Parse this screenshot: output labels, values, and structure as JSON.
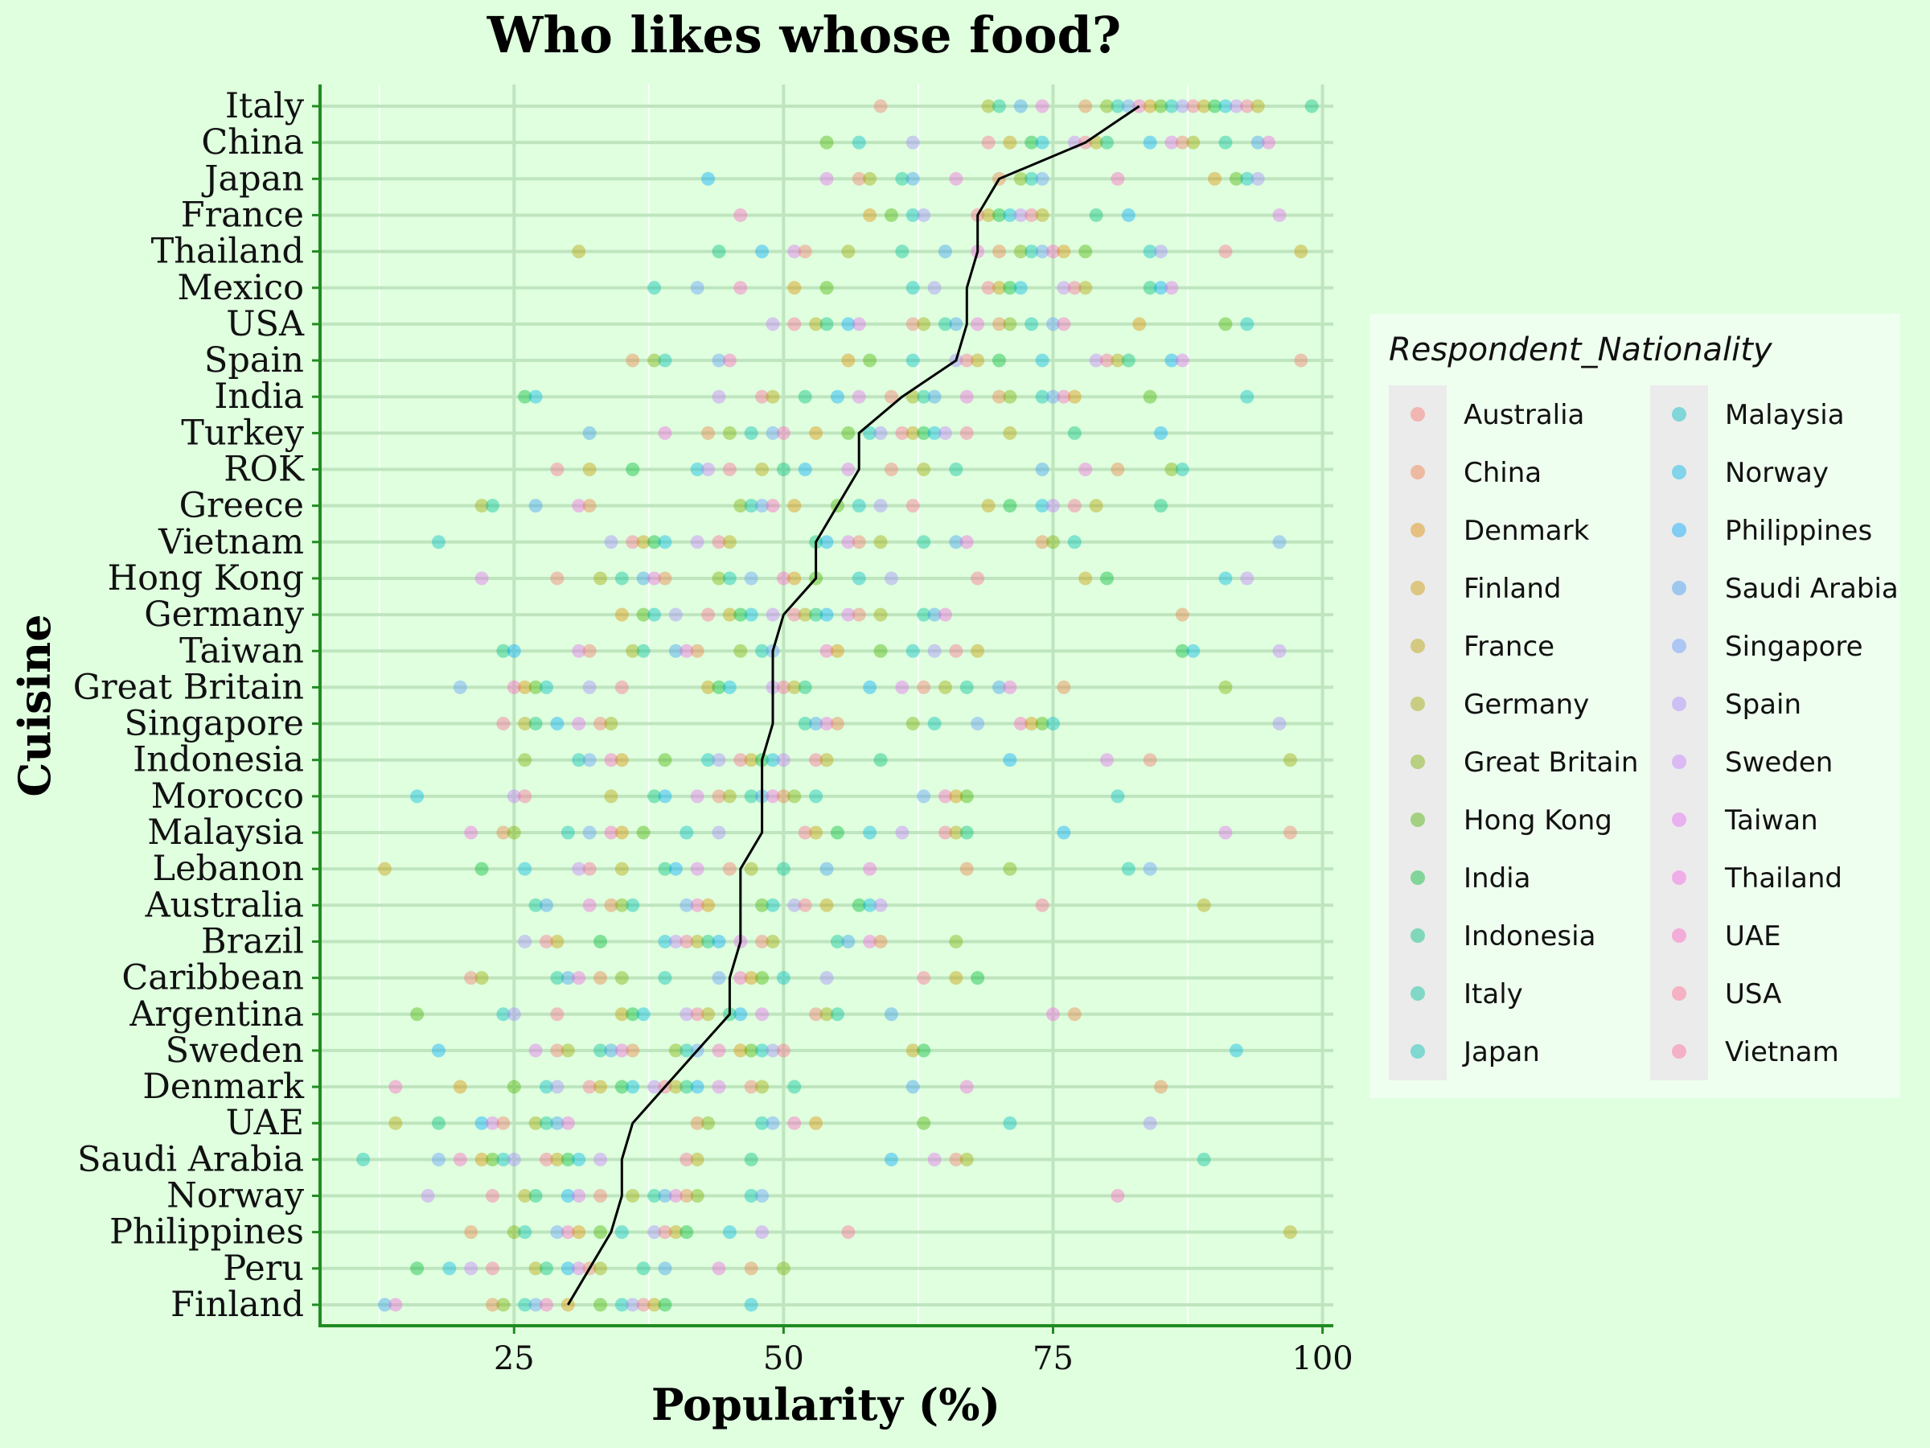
{
  "chart_data": {
    "type": "scatter",
    "title": "Who likes whose food?",
    "xlabel": "Popularity (%)",
    "ylabel": "Cuisine",
    "xlim": [
      7,
      101
    ],
    "xticks": [
      25,
      50,
      75,
      100
    ],
    "grid": true,
    "legend": {
      "title": "Respondent_Nationality",
      "placement": "right",
      "entries": [
        {
          "name": "Australia",
          "color": "#F8766D"
        },
        {
          "name": "China",
          "color": "#EF7F47"
        },
        {
          "name": "Denmark",
          "color": "#DE8C00"
        },
        {
          "name": "Finland",
          "color": "#C99800"
        },
        {
          "name": "France",
          "color": "#B79F00"
        },
        {
          "name": "Germany",
          "color": "#9FA800"
        },
        {
          "name": "Great Britain",
          "color": "#7CAE00"
        },
        {
          "name": "Hong Kong",
          "color": "#4BB200"
        },
        {
          "name": "India",
          "color": "#00BA38"
        },
        {
          "name": "Indonesia",
          "color": "#00BF7D"
        },
        {
          "name": "Italy",
          "color": "#00C19A"
        },
        {
          "name": "Japan",
          "color": "#00BFB2"
        },
        {
          "name": "Malaysia",
          "color": "#00BCC4"
        },
        {
          "name": "Norway",
          "color": "#00B8E7"
        },
        {
          "name": "Philippines",
          "color": "#00A9FF"
        },
        {
          "name": "Saudi Arabia",
          "color": "#3D9CF5"
        },
        {
          "name": "Singapore",
          "color": "#619CFF"
        },
        {
          "name": "Spain",
          "color": "#A58AFF"
        },
        {
          "name": "Sweden",
          "color": "#C77CFF"
        },
        {
          "name": "Taiwan",
          "color": "#E76BF3"
        },
        {
          "name": "Thailand",
          "color": "#F564E3"
        },
        {
          "name": "UAE",
          "color": "#FF61C3"
        },
        {
          "name": "USA",
          "color": "#FF6C91"
        },
        {
          "name": "Vietnam",
          "color": "#FF6A98"
        }
      ]
    },
    "categories": [
      "Italy",
      "China",
      "Japan",
      "France",
      "Thailand",
      "Mexico",
      "USA",
      "Spain",
      "India",
      "Turkey",
      "ROK",
      "Greece",
      "Vietnam",
      "Hong Kong",
      "Germany",
      "Taiwan",
      "Great Britain",
      "Singapore",
      "Indonesia",
      "Morocco",
      "Malaysia",
      "Lebanon",
      "Australia",
      "Brazil",
      "Caribbean",
      "Argentina",
      "Sweden",
      "Denmark",
      "UAE",
      "Saudi Arabia",
      "Norway",
      "Philippines",
      "Peru",
      "Finland"
    ],
    "mean_line": [
      83,
      78,
      70,
      68,
      68,
      67,
      67,
      66,
      61,
      57,
      57,
      55,
      53,
      53,
      50,
      49,
      49,
      49,
      48,
      48,
      48,
      46,
      46,
      46,
      45,
      45,
      42,
      39,
      36,
      35,
      35,
      34,
      32,
      30
    ],
    "points": [
      [
        59,
        69,
        70,
        72,
        74,
        78,
        80,
        81,
        82,
        83,
        84,
        85,
        86,
        87,
        88,
        89,
        90,
        91,
        92,
        93,
        94,
        99
      ],
      [
        54,
        57,
        62,
        69,
        71,
        73,
        74,
        77,
        78,
        79,
        80,
        84,
        86,
        87,
        88,
        91,
        94,
        95
      ],
      [
        43,
        54,
        57,
        58,
        61,
        62,
        66,
        70,
        72,
        73,
        74,
        81,
        90,
        92,
        93,
        94
      ],
      [
        46,
        58,
        60,
        62,
        63,
        68,
        69,
        70,
        71,
        72,
        73,
        74,
        79,
        82,
        96
      ],
      [
        31,
        44,
        48,
        51,
        52,
        56,
        61,
        65,
        68,
        70,
        72,
        73,
        74,
        75,
        76,
        78,
        84,
        85,
        91,
        98
      ],
      [
        38,
        42,
        46,
        51,
        54,
        62,
        64,
        69,
        70,
        71,
        72,
        76,
        77,
        78,
        84,
        85,
        86
      ],
      [
        49,
        51,
        53,
        54,
        56,
        57,
        62,
        63,
        65,
        66,
        68,
        70,
        71,
        73,
        75,
        76,
        83,
        91,
        93
      ],
      [
        36,
        38,
        39,
        44,
        45,
        56,
        58,
        62,
        66,
        67,
        68,
        70,
        74,
        79,
        80,
        81,
        82,
        86,
        87,
        98
      ],
      [
        26,
        27,
        44,
        48,
        49,
        52,
        55,
        57,
        60,
        62,
        63,
        64,
        67,
        70,
        71,
        74,
        75,
        76,
        77,
        84,
        93
      ],
      [
        32,
        39,
        43,
        45,
        47,
        49,
        50,
        53,
        56,
        58,
        59,
        61,
        62,
        63,
        64,
        65,
        67,
        71,
        77,
        85
      ],
      [
        29,
        32,
        36,
        42,
        43,
        45,
        48,
        50,
        52,
        56,
        60,
        63,
        66,
        74,
        78,
        81,
        86,
        87
      ],
      [
        22,
        23,
        27,
        31,
        32,
        46,
        47,
        48,
        49,
        51,
        55,
        57,
        59,
        62,
        69,
        71,
        74,
        75,
        77,
        79,
        85
      ],
      [
        18,
        34,
        36,
        37,
        38,
        39,
        42,
        44,
        45,
        53,
        54,
        56,
        57,
        59,
        63,
        66,
        67,
        74,
        75,
        77,
        96
      ],
      [
        22,
        29,
        33,
        35,
        37,
        38,
        39,
        44,
        45,
        47,
        50,
        51,
        53,
        57,
        60,
        68,
        78,
        80,
        91,
        93
      ],
      [
        35,
        37,
        38,
        40,
        43,
        45,
        46,
        47,
        49,
        51,
        52,
        53,
        54,
        56,
        57,
        59,
        63,
        64,
        65,
        87
      ],
      [
        24,
        25,
        31,
        32,
        36,
        37,
        40,
        41,
        42,
        46,
        48,
        49,
        54,
        55,
        59,
        62,
        64,
        66,
        68,
        87,
        88,
        96
      ],
      [
        20,
        25,
        26,
        27,
        28,
        32,
        35,
        43,
        44,
        45,
        49,
        50,
        51,
        52,
        58,
        61,
        63,
        65,
        67,
        70,
        71,
        76,
        91
      ],
      [
        24,
        26,
        27,
        29,
        31,
        33,
        34,
        52,
        53,
        54,
        55,
        62,
        64,
        68,
        72,
        73,
        74,
        75,
        96
      ],
      [
        26,
        31,
        32,
        34,
        35,
        39,
        43,
        44,
        46,
        47,
        48,
        49,
        50,
        53,
        54,
        59,
        71,
        80,
        84,
        97
      ],
      [
        16,
        25,
        26,
        34,
        38,
        39,
        42,
        44,
        45,
        47,
        48,
        49,
        50,
        51,
        53,
        63,
        65,
        66,
        67,
        81
      ],
      [
        21,
        24,
        25,
        30,
        32,
        34,
        35,
        37,
        41,
        44,
        52,
        53,
        55,
        58,
        61,
        65,
        66,
        67,
        76,
        91,
        97
      ],
      [
        13,
        22,
        26,
        31,
        32,
        35,
        39,
        40,
        42,
        45,
        47,
        50,
        54,
        58,
        67,
        71,
        82,
        84
      ],
      [
        27,
        28,
        32,
        34,
        35,
        36,
        41,
        42,
        43,
        48,
        49,
        51,
        52,
        54,
        57,
        58,
        59,
        74,
        89
      ],
      [
        26,
        28,
        29,
        33,
        39,
        40,
        41,
        42,
        43,
        44,
        46,
        48,
        49,
        55,
        56,
        58,
        59,
        66
      ],
      [
        21,
        22,
        29,
        30,
        31,
        33,
        35,
        39,
        44,
        46,
        47,
        48,
        50,
        54,
        63,
        66,
        68
      ],
      [
        16,
        24,
        25,
        29,
        35,
        36,
        37,
        41,
        42,
        43,
        45,
        46,
        48,
        53,
        54,
        55,
        60,
        75,
        77
      ],
      [
        18,
        27,
        29,
        30,
        33,
        34,
        35,
        36,
        40,
        41,
        42,
        44,
        46,
        47,
        48,
        49,
        50,
        62,
        63,
        92
      ],
      [
        14,
        20,
        25,
        28,
        29,
        32,
        33,
        35,
        36,
        38,
        39,
        40,
        41,
        42,
        44,
        47,
        48,
        51,
        62,
        67,
        85
      ],
      [
        14,
        18,
        22,
        23,
        24,
        27,
        28,
        29,
        30,
        42,
        43,
        48,
        49,
        51,
        53,
        63,
        71,
        84
      ],
      [
        11,
        18,
        20,
        22,
        23,
        24,
        25,
        28,
        29,
        30,
        31,
        33,
        41,
        42,
        47,
        60,
        64,
        66,
        67,
        89
      ],
      [
        17,
        23,
        26,
        27,
        30,
        31,
        33,
        36,
        38,
        39,
        40,
        41,
        42,
        47,
        48,
        81
      ],
      [
        21,
        25,
        26,
        29,
        30,
        31,
        33,
        35,
        38,
        39,
        40,
        41,
        45,
        48,
        56,
        97
      ],
      [
        16,
        19,
        21,
        23,
        27,
        28,
        30,
        31,
        32,
        33,
        37,
        39,
        44,
        47,
        50
      ],
      [
        13,
        14,
        23,
        24,
        26,
        27,
        28,
        30,
        33,
        35,
        36,
        37,
        38,
        39,
        47
      ]
    ]
  }
}
